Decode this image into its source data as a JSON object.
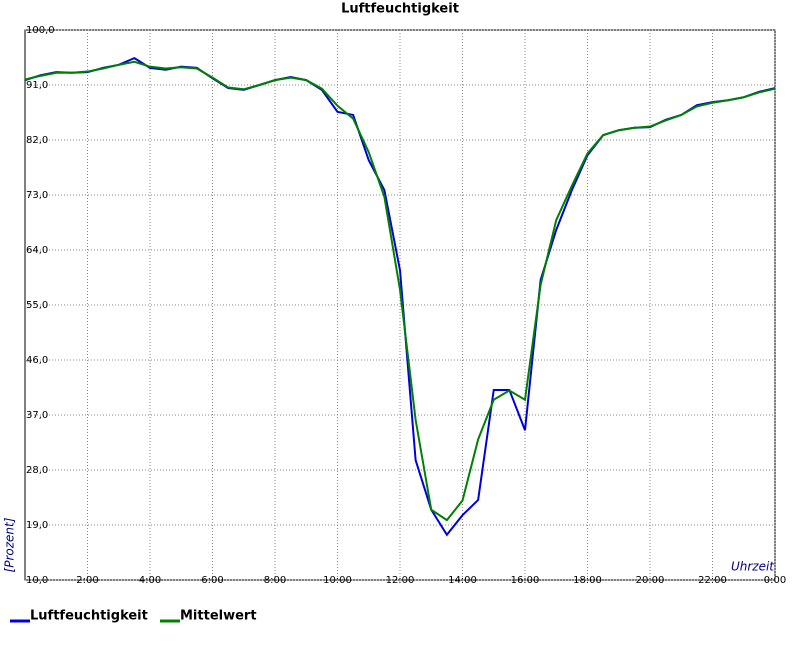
{
  "chart_data": {
    "type": "line",
    "title": "Luftfeuchtigkeit",
    "y_label": "[Prozent]",
    "x_label": "Uhrzeit",
    "x": [
      0,
      0.5,
      1,
      1.5,
      2,
      2.5,
      3,
      3.5,
      4,
      4.5,
      5,
      5.5,
      6,
      6.5,
      7,
      7.5,
      8,
      8.5,
      9,
      9.5,
      10,
      10.5,
      11,
      11.5,
      12,
      12.5,
      13,
      13.5,
      14,
      14.5,
      15,
      15.5,
      16,
      16.5,
      17,
      17.5,
      18,
      18.5,
      19,
      19.5,
      20,
      20.5,
      21,
      21.5,
      22,
      22.5,
      23,
      23.5,
      24
    ],
    "series": [
      {
        "name": "Luftfeuchtigkeit",
        "color": "#0000dd",
        "values": [
          91.8,
          92.6,
          93.1,
          93,
          93.1,
          93.8,
          94.3,
          95.4,
          93.8,
          93.5,
          94,
          93.8,
          92.1,
          90.5,
          90.2,
          91,
          91.8,
          92.3,
          91.8,
          90.2,
          86.6,
          86.1,
          78.7,
          73.8,
          60.7,
          29.6,
          21.5,
          17.4,
          20.6,
          23.1,
          41.1,
          41.1,
          34.5,
          59.1,
          67.3,
          73.8,
          79.5,
          82.8,
          83.6,
          84,
          84.1,
          85.3,
          86.1,
          87.7,
          88.2,
          88.5,
          89,
          89.9,
          90.5
        ]
      },
      {
        "name": "Mittelwert",
        "color": "#008000",
        "values": [
          91.9,
          92.5,
          93,
          93,
          93.2,
          93.7,
          94.3,
          94.8,
          94,
          93.7,
          93.9,
          93.7,
          92.2,
          90.6,
          90.3,
          91,
          91.8,
          92.2,
          91.8,
          90.4,
          87.6,
          85.5,
          80,
          72.7,
          57.5,
          36.2,
          21.5,
          19.8,
          23,
          33,
          39.5,
          41,
          39.5,
          58.3,
          68.9,
          74.5,
          79.8,
          82.8,
          83.6,
          84,
          84.2,
          85.2,
          86.1,
          87.5,
          88.1,
          88.5,
          89,
          89.8,
          90.4
        ]
      }
    ],
    "xlim": [
      0,
      24
    ],
    "ylim": [
      10,
      100
    ],
    "xticks": [
      {
        "value": 2,
        "label": "2:00"
      },
      {
        "value": 4,
        "label": "4:00"
      },
      {
        "value": 6,
        "label": "6:00"
      },
      {
        "value": 8,
        "label": "8:00"
      },
      {
        "value": 10,
        "label": "10:00"
      },
      {
        "value": 12,
        "label": "12:00"
      },
      {
        "value": 14,
        "label": "14:00"
      },
      {
        "value": 16,
        "label": "16:00"
      },
      {
        "value": 18,
        "label": "18:00"
      },
      {
        "value": 20,
        "label": "20:00"
      },
      {
        "value": 22,
        "label": "22:00"
      },
      {
        "value": 24,
        "label": "0:00"
      }
    ],
    "yticks": [
      {
        "value": 10,
        "label": "10,0"
      },
      {
        "value": 19,
        "label": "19,0"
      },
      {
        "value": 28,
        "label": "28,0"
      },
      {
        "value": 37,
        "label": "37,0"
      },
      {
        "value": 46,
        "label": "46,0"
      },
      {
        "value": 55,
        "label": "55,0"
      },
      {
        "value": 64,
        "label": "64,0"
      },
      {
        "value": 73,
        "label": "73,0"
      },
      {
        "value": 82,
        "label": "82,0"
      },
      {
        "value": 91,
        "label": "91,0"
      },
      {
        "value": 100,
        "label": "100,0"
      }
    ],
    "grid": true
  }
}
